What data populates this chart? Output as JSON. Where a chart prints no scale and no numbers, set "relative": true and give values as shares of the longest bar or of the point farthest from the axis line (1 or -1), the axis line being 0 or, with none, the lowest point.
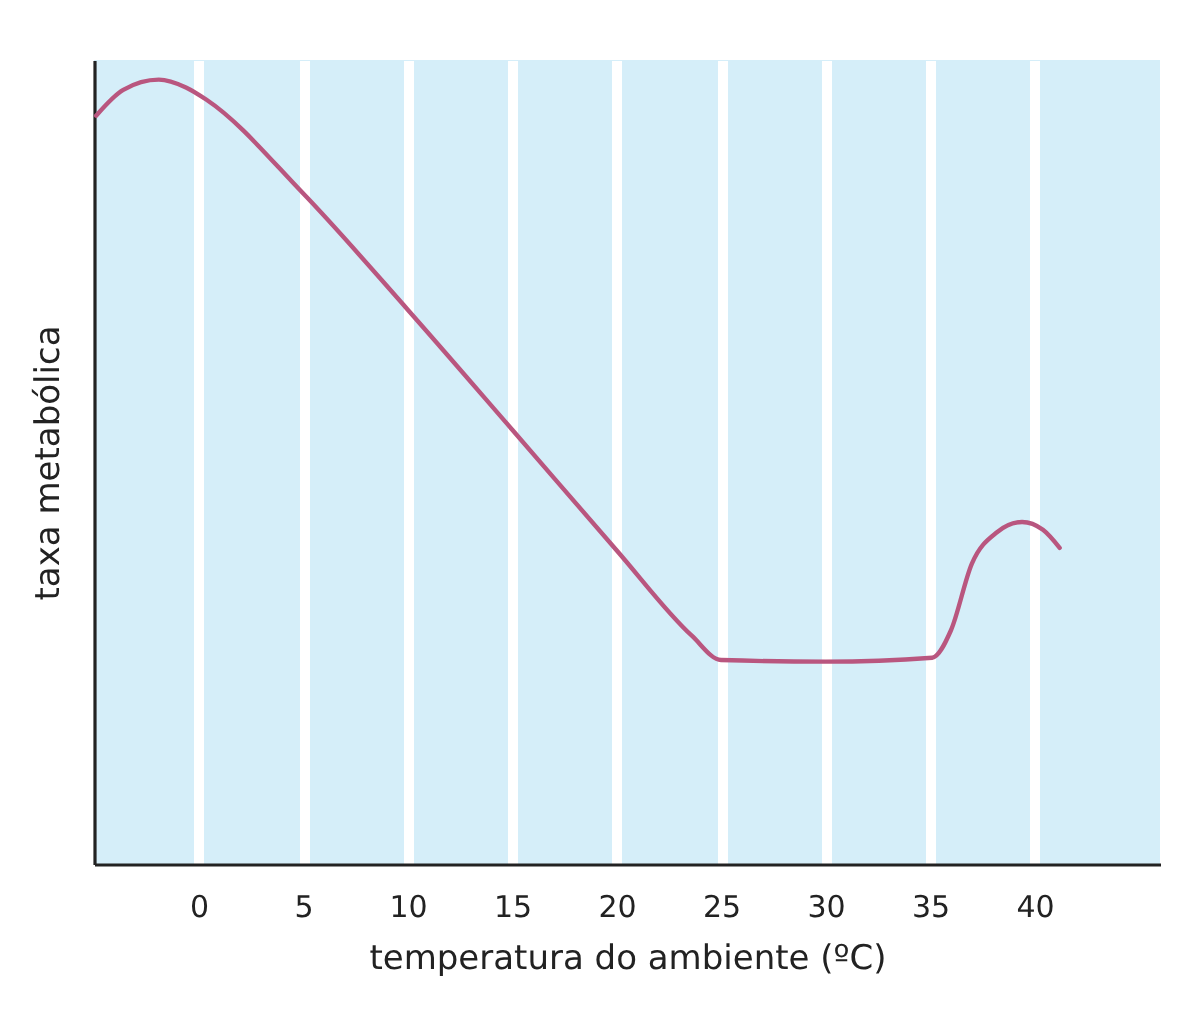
{
  "chart_data": {
    "type": "line",
    "xlabel": "temperatura do ambiente (ºC)",
    "ylabel": "taxa metabólica",
    "relative": true,
    "x": [
      -4.9,
      -3.6,
      -1.9,
      -0.6,
      0.4,
      5,
      10,
      15,
      20,
      23.6,
      25,
      30,
      35.1,
      36,
      37,
      38.2,
      39.4,
      40.4,
      41.2
    ],
    "series": [
      {
        "color": "#b9567f",
        "values": [
          0.954,
          0.987,
          1.0,
          0.99,
          0.974,
          0.855,
          0.707,
          0.554,
          0.4,
          0.291,
          0.26,
          0.258,
          0.263,
          0.298,
          0.383,
          0.423,
          0.436,
          0.426,
          0.403
        ]
      }
    ],
    "xlim": [
      -5,
      46
    ],
    "xticks": [
      0,
      5,
      10,
      15,
      20,
      25,
      30,
      35,
      40
    ],
    "grid": "x",
    "marker": "none",
    "line_style": "solid"
  }
}
